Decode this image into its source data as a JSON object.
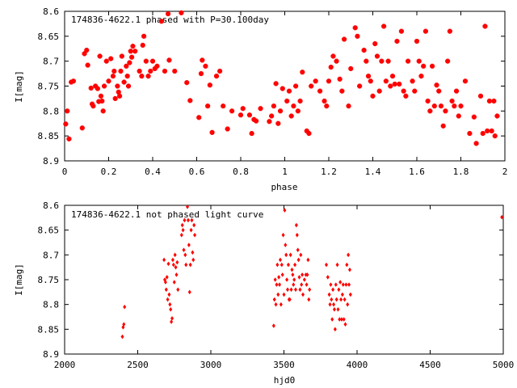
{
  "chart_data": [
    {
      "type": "scatter",
      "title": "174836-4622.1 phased with P=30.100day",
      "xlabel": "phase",
      "ylabel": "I[mag]",
      "xlim": [
        0,
        2
      ],
      "ylim": [
        8.6,
        8.9
      ],
      "y_inverted": true,
      "x_ticks": [
        "0",
        "0.2",
        "0.4",
        "0.6",
        "0.8",
        "1",
        "1.2",
        "1.4",
        "1.6",
        "1.8",
        "2"
      ],
      "x_tick_values": [
        0,
        0.2,
        0.4,
        0.6,
        0.8,
        1.0,
        1.2,
        1.4,
        1.6,
        1.8,
        2.0
      ],
      "y_ticks": [
        "8.6",
        "8.65",
        "8.7",
        "8.75",
        "8.8",
        "8.85",
        "8.9"
      ],
      "y_tick_values": [
        8.6,
        8.65,
        8.7,
        8.75,
        8.8,
        8.85,
        8.9
      ],
      "marker_color": "#ff0000",
      "points": [
        [
          0.005,
          8.826
        ],
        [
          0.012,
          8.8
        ],
        [
          0.02,
          8.856
        ],
        [
          0.03,
          8.742
        ],
        [
          0.04,
          8.74
        ],
        [
          0.08,
          8.834
        ],
        [
          0.09,
          8.685
        ],
        [
          0.1,
          8.678
        ],
        [
          0.105,
          8.708
        ],
        [
          0.12,
          8.754
        ],
        [
          0.125,
          8.786
        ],
        [
          0.13,
          8.79
        ],
        [
          0.14,
          8.75
        ],
        [
          0.15,
          8.755
        ],
        [
          0.155,
          8.781
        ],
        [
          0.16,
          8.69
        ],
        [
          0.165,
          8.77
        ],
        [
          0.17,
          8.78
        ],
        [
          0.175,
          8.8
        ],
        [
          0.18,
          8.75
        ],
        [
          0.19,
          8.7
        ],
        [
          0.2,
          8.74
        ],
        [
          0.21,
          8.695
        ],
        [
          0.22,
          8.73
        ],
        [
          0.225,
          8.72
        ],
        [
          0.23,
          8.775
        ],
        [
          0.24,
          8.75
        ],
        [
          0.245,
          8.762
        ],
        [
          0.25,
          8.77
        ],
        [
          0.255,
          8.72
        ],
        [
          0.26,
          8.69
        ],
        [
          0.27,
          8.742
        ],
        [
          0.28,
          8.71
        ],
        [
          0.285,
          8.73
        ],
        [
          0.29,
          8.75
        ],
        [
          0.295,
          8.703
        ],
        [
          0.3,
          8.68
        ],
        [
          0.305,
          8.692
        ],
        [
          0.31,
          8.67
        ],
        [
          0.32,
          8.68
        ],
        [
          0.34,
          8.72
        ],
        [
          0.35,
          8.73
        ],
        [
          0.355,
          8.668
        ],
        [
          0.36,
          8.65
        ],
        [
          0.37,
          8.7
        ],
        [
          0.38,
          8.73
        ],
        [
          0.39,
          8.72
        ],
        [
          0.4,
          8.7
        ],
        [
          0.41,
          8.715
        ],
        [
          0.42,
          8.71
        ],
        [
          0.44,
          8.62
        ],
        [
          0.455,
          8.72
        ],
        [
          0.47,
          8.605
        ],
        [
          0.475,
          8.698
        ],
        [
          0.5,
          8.72
        ],
        [
          0.53,
          8.603
        ],
        [
          0.555,
          8.743
        ],
        [
          0.57,
          8.779
        ],
        [
          0.61,
          8.813
        ],
        [
          0.62,
          8.725
        ],
        [
          0.625,
          8.698
        ],
        [
          0.64,
          8.71
        ],
        [
          0.65,
          8.79
        ],
        [
          0.66,
          8.748
        ],
        [
          0.67,
          8.843
        ],
        [
          0.69,
          8.73
        ],
        [
          0.705,
          8.72
        ],
        [
          0.72,
          8.79
        ],
        [
          0.74,
          8.836
        ],
        [
          0.76,
          8.8
        ],
        [
          0.8,
          8.808
        ],
        [
          0.81,
          8.795
        ],
        [
          0.84,
          8.808
        ],
        [
          0.85,
          8.845
        ],
        [
          0.86,
          8.817
        ],
        [
          0.87,
          8.82
        ],
        [
          0.89,
          8.795
        ],
        [
          0.93,
          8.821
        ],
        [
          0.94,
          8.81
        ],
        [
          0.95,
          8.79
        ],
        [
          0.96,
          8.745
        ],
        [
          0.97,
          8.825
        ],
        [
          0.98,
          8.8
        ],
        [
          0.99,
          8.755
        ],
        [
          1.01,
          8.78
        ],
        [
          1.02,
          8.76
        ],
        [
          1.03,
          8.81
        ],
        [
          1.04,
          8.79
        ],
        [
          1.05,
          8.75
        ],
        [
          1.06,
          8.8
        ],
        [
          1.07,
          8.78
        ],
        [
          1.08,
          8.722
        ],
        [
          1.1,
          8.84
        ],
        [
          1.11,
          8.845
        ],
        [
          1.12,
          8.75
        ],
        [
          1.14,
          8.74
        ],
        [
          1.16,
          8.76
        ],
        [
          1.18,
          8.78
        ],
        [
          1.19,
          8.79
        ],
        [
          1.2,
          8.74
        ],
        [
          1.21,
          8.712
        ],
        [
          1.22,
          8.69
        ],
        [
          1.235,
          8.7
        ],
        [
          1.25,
          8.736
        ],
        [
          1.26,
          8.76
        ],
        [
          1.27,
          8.656
        ],
        [
          1.29,
          8.79
        ],
        [
          1.3,
          8.715
        ],
        [
          1.32,
          8.633
        ],
        [
          1.33,
          8.65
        ],
        [
          1.34,
          8.75
        ],
        [
          1.36,
          8.678
        ],
        [
          1.37,
          8.7
        ],
        [
          1.38,
          8.73
        ],
        [
          1.39,
          8.74
        ],
        [
          1.4,
          8.77
        ],
        [
          1.41,
          8.665
        ],
        [
          1.42,
          8.69
        ],
        [
          1.43,
          8.76
        ],
        [
          1.44,
          8.7
        ],
        [
          1.45,
          8.63
        ],
        [
          1.46,
          8.74
        ],
        [
          1.47,
          8.7
        ],
        [
          1.48,
          8.75
        ],
        [
          1.49,
          8.73
        ],
        [
          1.5,
          8.746
        ],
        [
          1.51,
          8.66
        ],
        [
          1.52,
          8.746
        ],
        [
          1.53,
          8.64
        ],
        [
          1.54,
          8.76
        ],
        [
          1.55,
          8.77
        ],
        [
          1.56,
          8.7
        ],
        [
          1.58,
          8.74
        ],
        [
          1.59,
          8.76
        ],
        [
          1.6,
          8.66
        ],
        [
          1.61,
          8.7
        ],
        [
          1.62,
          8.73
        ],
        [
          1.63,
          8.71
        ],
        [
          1.64,
          8.64
        ],
        [
          1.65,
          8.78
        ],
        [
          1.66,
          8.8
        ],
        [
          1.67,
          8.71
        ],
        [
          1.68,
          8.79
        ],
        [
          1.69,
          8.748
        ],
        [
          1.7,
          8.76
        ],
        [
          1.71,
          8.79
        ],
        [
          1.72,
          8.83
        ],
        [
          1.73,
          8.8
        ],
        [
          1.74,
          8.7
        ],
        [
          1.75,
          8.64
        ],
        [
          1.76,
          8.78
        ],
        [
          1.77,
          8.79
        ],
        [
          1.78,
          8.76
        ],
        [
          1.79,
          8.81
        ],
        [
          1.8,
          8.79
        ],
        [
          1.82,
          8.74
        ],
        [
          1.84,
          8.845
        ],
        [
          1.86,
          8.812
        ],
        [
          1.87,
          8.865
        ],
        [
          1.89,
          8.77
        ],
        [
          1.9,
          8.845
        ],
        [
          1.91,
          8.63
        ],
        [
          1.92,
          8.84
        ],
        [
          1.93,
          8.78
        ],
        [
          1.94,
          8.84
        ],
        [
          1.95,
          8.78
        ],
        [
          1.955,
          8.85
        ],
        [
          1.965,
          8.81
        ]
      ]
    },
    {
      "type": "scatter",
      "title": "174836-4622.1 not phased light curve",
      "xlabel": "hjd0",
      "ylabel": "I[mag]",
      "xlim": [
        2000,
        5000
      ],
      "ylim": [
        8.6,
        8.9
      ],
      "y_inverted": true,
      "x_ticks": [
        "2000",
        "2500",
        "3000",
        "3500",
        "4000",
        "4500",
        "5000"
      ],
      "x_tick_values": [
        2000,
        2500,
        3000,
        3500,
        4000,
        4500,
        5000
      ],
      "y_ticks": [
        "8.6",
        "8.65",
        "8.7",
        "8.75",
        "8.8",
        "8.85",
        "8.9"
      ],
      "y_tick_values": [
        8.6,
        8.65,
        8.7,
        8.75,
        8.8,
        8.85,
        8.9
      ],
      "marker_color": "#ff0000",
      "points": [
        [
          2395,
          8.865
        ],
        [
          2400,
          8.846
        ],
        [
          2405,
          8.84
        ],
        [
          2410,
          8.805
        ],
        [
          2680,
          8.71
        ],
        [
          2685,
          8.75
        ],
        [
          2690,
          8.755
        ],
        [
          2695,
          8.77
        ],
        [
          2700,
          8.745
        ],
        [
          2705,
          8.79
        ],
        [
          2710,
          8.718
        ],
        [
          2715,
          8.78
        ],
        [
          2720,
          8.8
        ],
        [
          2725,
          8.81
        ],
        [
          2730,
          8.835
        ],
        [
          2735,
          8.828
        ],
        [
          2740,
          8.71
        ],
        [
          2745,
          8.72
        ],
        [
          2750,
          8.755
        ],
        [
          2755,
          8.7
        ],
        [
          2760,
          8.725
        ],
        [
          2765,
          8.74
        ],
        [
          2770,
          8.715
        ],
        [
          2775,
          8.77
        ],
        [
          2800,
          8.66
        ],
        [
          2805,
          8.64
        ],
        [
          2810,
          8.65
        ],
        [
          2815,
          8.69
        ],
        [
          2820,
          8.63
        ],
        [
          2825,
          8.7
        ],
        [
          2830,
          8.72
        ],
        [
          2840,
          8.603
        ],
        [
          2845,
          8.63
        ],
        [
          2850,
          8.68
        ],
        [
          2855,
          8.775
        ],
        [
          2860,
          8.72
        ],
        [
          2865,
          8.65
        ],
        [
          2870,
          8.63
        ],
        [
          2875,
          8.695
        ],
        [
          2880,
          8.71
        ],
        [
          2885,
          8.64
        ],
        [
          2890,
          8.66
        ],
        [
          3430,
          8.843
        ],
        [
          3435,
          8.79
        ],
        [
          3440,
          8.75
        ],
        [
          3445,
          8.8
        ],
        [
          3450,
          8.76
        ],
        [
          3455,
          8.72
        ],
        [
          3460,
          8.78
        ],
        [
          3465,
          8.745
        ],
        [
          3470,
          8.76
        ],
        [
          3475,
          8.71
        ],
        [
          3480,
          8.8
        ],
        [
          3485,
          8.72
        ],
        [
          3490,
          8.74
        ],
        [
          3495,
          8.66
        ],
        [
          3500,
          8.78
        ],
        [
          3505,
          8.61
        ],
        [
          3510,
          8.68
        ],
        [
          3515,
          8.7
        ],
        [
          3520,
          8.75
        ],
        [
          3525,
          8.77
        ],
        [
          3530,
          8.72
        ],
        [
          3535,
          8.79
        ],
        [
          3540,
          8.79
        ],
        [
          3545,
          8.7
        ],
        [
          3550,
          8.77
        ],
        [
          3555,
          8.73
        ],
        [
          3560,
          8.74
        ],
        [
          3565,
          8.76
        ],
        [
          3570,
          8.75
        ],
        [
          3575,
          8.72
        ],
        [
          3580,
          8.77
        ],
        [
          3585,
          8.64
        ],
        [
          3590,
          8.66
        ],
        [
          3595,
          8.69
        ],
        [
          3600,
          8.71
        ],
        [
          3605,
          8.745
        ],
        [
          3610,
          8.77
        ],
        [
          3615,
          8.7
        ],
        [
          3620,
          8.76
        ],
        [
          3625,
          8.74
        ],
        [
          3630,
          8.78
        ],
        [
          3640,
          8.75
        ],
        [
          3650,
          8.74
        ],
        [
          3655,
          8.76
        ],
        [
          3660,
          8.74
        ],
        [
          3665,
          8.71
        ],
        [
          3670,
          8.79
        ],
        [
          3675,
          8.77
        ],
        [
          3790,
          8.72
        ],
        [
          3800,
          8.745
        ],
        [
          3810,
          8.78
        ],
        [
          3815,
          8.8
        ],
        [
          3820,
          8.76
        ],
        [
          3825,
          8.79
        ],
        [
          3830,
          8.83
        ],
        [
          3835,
          8.77
        ],
        [
          3840,
          8.8
        ],
        [
          3845,
          8.81
        ],
        [
          3850,
          8.85
        ],
        [
          3855,
          8.76
        ],
        [
          3860,
          8.79
        ],
        [
          3865,
          8.72
        ],
        [
          3870,
          8.81
        ],
        [
          3875,
          8.77
        ],
        [
          3880,
          8.83
        ],
        [
          3885,
          8.755
        ],
        [
          3890,
          8.79
        ],
        [
          3895,
          8.83
        ],
        [
          3900,
          8.78
        ],
        [
          3905,
          8.76
        ],
        [
          3910,
          8.83
        ],
        [
          3915,
          8.79
        ],
        [
          3920,
          8.84
        ],
        [
          3925,
          8.76
        ],
        [
          3930,
          8.72
        ],
        [
          3935,
          8.8
        ],
        [
          3940,
          8.7
        ],
        [
          3945,
          8.76
        ],
        [
          3950,
          8.73
        ],
        [
          3955,
          8.78
        ],
        [
          4990,
          8.624
        ]
      ]
    }
  ]
}
